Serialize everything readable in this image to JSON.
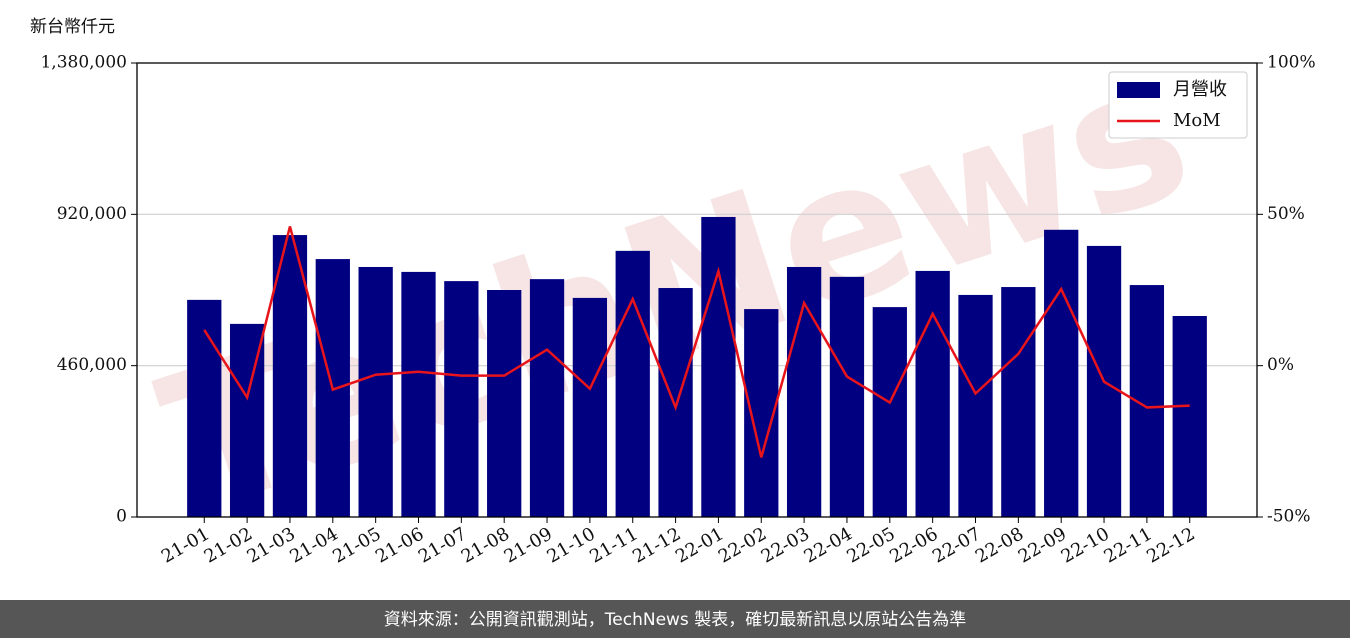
{
  "chart_data": {
    "type": "bar_line",
    "y_label": "新台幣仟元",
    "watermark": "TechNews",
    "footer": "資料來源：公開資訊觀測站，TechNews 製表，確切最新訊息以原站公告為準",
    "categories": [
      "21-01",
      "21-02",
      "21-03",
      "21-04",
      "21-05",
      "21-06",
      "21-07",
      "21-08",
      "21-09",
      "21-10",
      "21-11",
      "21-12",
      "22-01",
      "22-02",
      "22-03",
      "22-04",
      "22-05",
      "22-06",
      "22-07",
      "22-08",
      "22-09",
      "22-10",
      "22-11",
      "22-12"
    ],
    "series": [
      {
        "name": "月營收",
        "type": "bar",
        "color": "#000080",
        "values": [
          660000,
          587000,
          857000,
          784000,
          760000,
          745000,
          717000,
          690000,
          723000,
          666000,
          809000,
          696000,
          912000,
          632000,
          760000,
          730000,
          638000,
          748000,
          675000,
          699000,
          873000,
          824000,
          705000,
          611000
        ]
      },
      {
        "name": "MoM",
        "type": "line",
        "axis": "y2",
        "color": "#e8141b",
        "values": [
          11.8,
          -10.5,
          46,
          -7.9,
          -3,
          -2,
          -3.3,
          -3.3,
          5.3,
          -7.6,
          22,
          -13.8,
          31.2,
          -30.3,
          20.7,
          -3.6,
          -12.2,
          17.1,
          -9.2,
          3.9,
          25.3,
          -5.3,
          -13.8,
          -13.2
        ]
      }
    ],
    "ylim": [
      0,
      1380000
    ],
    "yticks": [
      0,
      {
        "value": 460000,
        "label": "460,000"
      },
      {
        "value": 920000,
        "label": "920,000"
      },
      {
        "value": 1380000,
        "label": "1,380,000"
      }
    ],
    "y2lim": [
      -50,
      100
    ],
    "y2ticks": [
      {
        "value": -50,
        "label": "-50%"
      },
      {
        "value": 0,
        "label": "0%"
      },
      {
        "value": 50,
        "label": "50%"
      },
      {
        "value": 100,
        "label": "100%"
      }
    ],
    "grid": true,
    "legend": "upper right"
  }
}
